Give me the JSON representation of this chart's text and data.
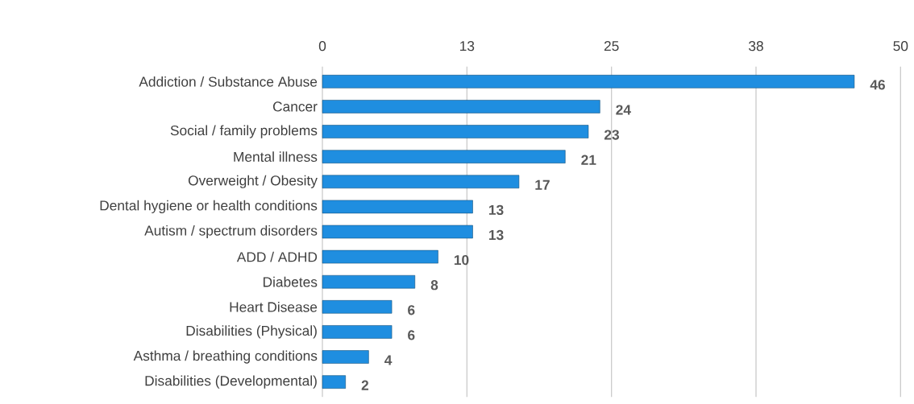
{
  "chart_data": {
    "type": "bar",
    "orientation": "horizontal",
    "categories": [
      "Addiction / Substance Abuse",
      "Cancer",
      "Social / family problems",
      "Mental illness",
      "Overweight / Obesity",
      "Dental hygiene or health conditions",
      "Autism / spectrum disorders",
      "ADD / ADHD",
      "Diabetes",
      "Heart Disease",
      "Disabilities (Physical)",
      "Asthma / breathing conditions",
      "Disabilities (Developmental)"
    ],
    "values": [
      46,
      24,
      23,
      21,
      17,
      13,
      13,
      10,
      8,
      6,
      6,
      4,
      2
    ],
    "color": "#1f8ee0",
    "xlim": [
      0,
      50
    ],
    "xticks": [
      0,
      {
        "value": 12.5,
        "label": "13"
      },
      25,
      {
        "value": 37.5,
        "label": "38"
      },
      50
    ],
    "grid": "x",
    "data_labels": true
  }
}
